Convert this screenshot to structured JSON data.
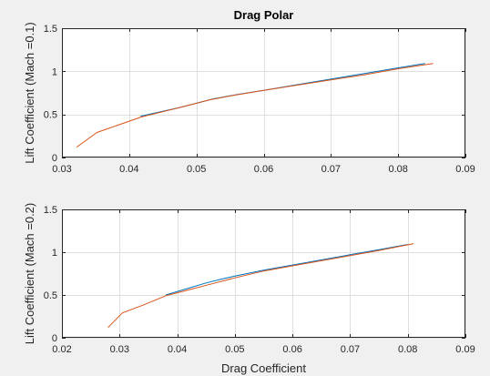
{
  "figure": {
    "background": "#f0f0f0",
    "axes_background": "#ffffff"
  },
  "chart_data": [
    {
      "type": "line",
      "title": "Drag Polar",
      "xlabel": "",
      "ylabel": "Lift Coefficient (Mach =0.1)",
      "xlim": [
        0.03,
        0.09
      ],
      "ylim": [
        0,
        1.5
      ],
      "xticks": [
        0.03,
        0.04,
        0.05,
        0.06,
        0.07,
        0.08,
        0.09
      ],
      "yticks": [
        0,
        0.5,
        1,
        1.5
      ],
      "xtick_labels": [
        "0.03",
        "0.04",
        "0.05",
        "0.06",
        "0.07",
        "0.08",
        "0.09"
      ],
      "ytick_labels": [
        "0",
        "0.5",
        "1",
        "1.5"
      ],
      "grid": true,
      "series": [
        {
          "color": "#0072bd",
          "x": [
            0.0417,
            0.0475,
            0.0525,
            0.056,
            0.06,
            0.065,
            0.07,
            0.075,
            0.08,
            0.084
          ],
          "y": [
            0.48,
            0.58,
            0.68,
            0.73,
            0.78,
            0.845,
            0.91,
            0.975,
            1.04,
            1.09
          ]
        },
        {
          "color": "#d95319",
          "x": [
            0.0322,
            0.0352,
            0.0385,
            0.0418,
            0.0475,
            0.052,
            0.0555,
            0.06,
            0.065,
            0.07,
            0.075,
            0.08,
            0.0852
          ],
          "y": [
            0.12,
            0.29,
            0.38,
            0.47,
            0.58,
            0.67,
            0.72,
            0.78,
            0.84,
            0.9,
            0.96,
            1.03,
            1.09
          ]
        }
      ]
    },
    {
      "type": "line",
      "title": "",
      "xlabel": "Drag Coefficient",
      "ylabel": "Lift Coefficient (Mach =0.2)",
      "xlim": [
        0.02,
        0.09
      ],
      "ylim": [
        0,
        1.5
      ],
      "xticks": [
        0.02,
        0.03,
        0.04,
        0.05,
        0.06,
        0.07,
        0.08,
        0.09
      ],
      "yticks": [
        0,
        0.5,
        1,
        1.5
      ],
      "xtick_labels": [
        "0.02",
        "0.03",
        "0.04",
        "0.05",
        "0.06",
        "0.07",
        "0.08",
        "0.09"
      ],
      "ytick_labels": [
        "0",
        "0.5",
        "1",
        "1.5"
      ],
      "grid": true,
      "series": [
        {
          "color": "#0072bd",
          "x": [
            0.038,
            0.042,
            0.045,
            0.048,
            0.05,
            0.055,
            0.06,
            0.065,
            0.07,
            0.075,
            0.08
          ],
          "y": [
            0.5,
            0.58,
            0.64,
            0.69,
            0.72,
            0.79,
            0.85,
            0.91,
            0.97,
            1.03,
            1.09
          ]
        },
        {
          "color": "#d95319",
          "x": [
            0.028,
            0.0305,
            0.034,
            0.038,
            0.042,
            0.046,
            0.05,
            0.055,
            0.06,
            0.065,
            0.07,
            0.075,
            0.081
          ],
          "y": [
            0.12,
            0.29,
            0.38,
            0.49,
            0.56,
            0.63,
            0.7,
            0.78,
            0.84,
            0.9,
            0.96,
            1.02,
            1.1
          ]
        }
      ]
    }
  ]
}
